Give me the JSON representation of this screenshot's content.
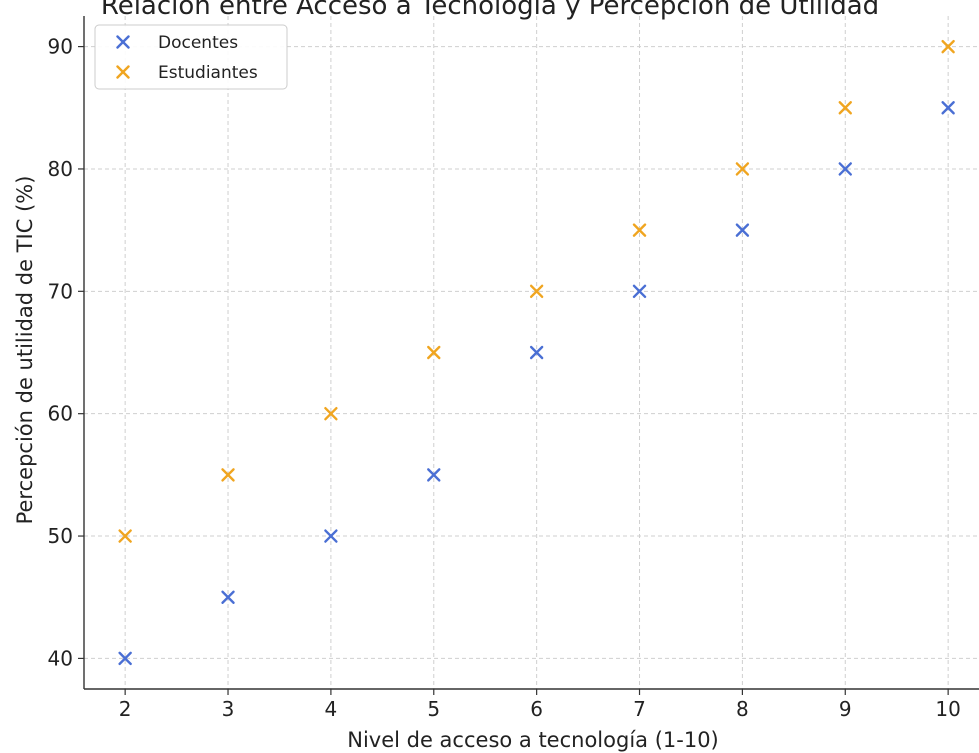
{
  "chart_data": {
    "type": "scatter",
    "title": "Relación entre Acceso a Tecnología y Percepción de Utilidad",
    "xlabel": "Nivel de acceso a tecnología (1-10)",
    "ylabel": "Percepción de utilidad de TIC (%)",
    "xlim": [
      1.6,
      10.3
    ],
    "ylim": [
      37.5,
      92.5
    ],
    "xticks": [
      2,
      3,
      4,
      5,
      6,
      7,
      8,
      9,
      10
    ],
    "yticks": [
      40,
      50,
      60,
      70,
      80,
      90
    ],
    "grid": true,
    "legend_position": "top-left",
    "marker": "x",
    "series": [
      {
        "name": "Docentes",
        "color": "#4a6fd4",
        "x": [
          2,
          3,
          4,
          5,
          6,
          7,
          8,
          9,
          10
        ],
        "y": [
          40,
          45,
          50,
          55,
          65,
          70,
          75,
          80,
          85
        ]
      },
      {
        "name": "Estudiantes",
        "color": "#f0a520",
        "x": [
          2,
          3,
          4,
          5,
          6,
          7,
          8,
          9,
          10
        ],
        "y": [
          50,
          55,
          60,
          65,
          70,
          75,
          80,
          85,
          90
        ]
      }
    ]
  }
}
